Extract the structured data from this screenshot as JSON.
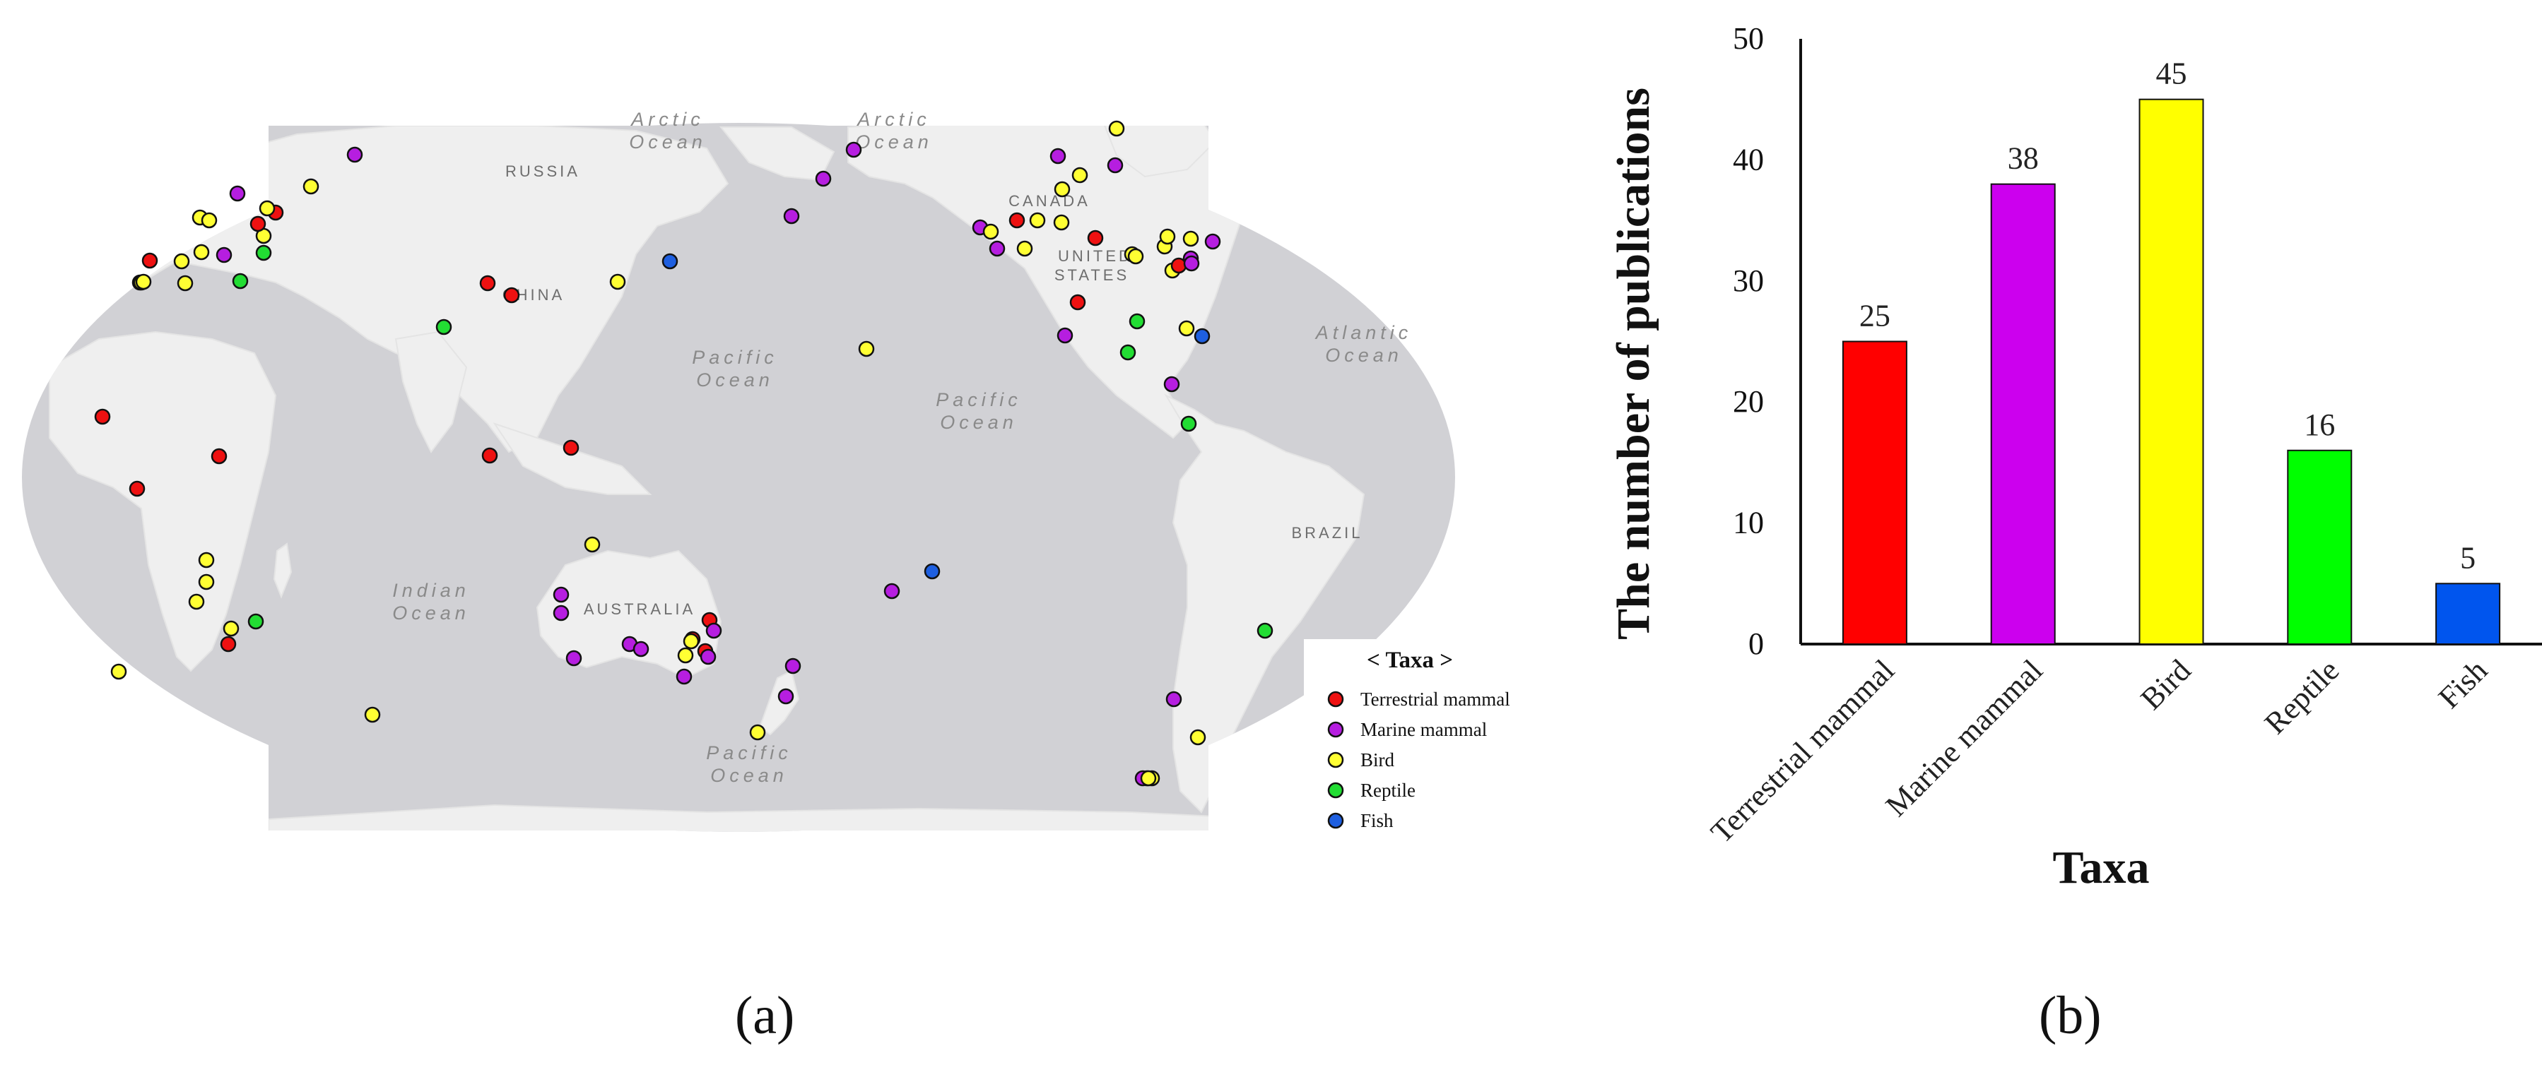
{
  "panel_labels": {
    "a": "(a)",
    "b": "(b)"
  },
  "map": {
    "ocean_labels": [
      {
        "line1": "Arctic",
        "line2": "Ocean"
      },
      {
        "line1": "Arctic",
        "line2": "Ocean"
      },
      {
        "line1": "Pacific",
        "line2": "Ocean"
      },
      {
        "line1": "Pacific",
        "line2": "Ocean"
      },
      {
        "line1": "Atlantic",
        "line2": "Ocean"
      },
      {
        "line1": "Indian",
        "line2": "Ocean"
      },
      {
        "line1": "Pacific",
        "line2": "Ocean"
      }
    ],
    "country_labels": [
      "RUSSIA",
      "CHINA",
      "CANADA",
      "UNITED",
      "STATES",
      "AUSTRALIA",
      "BRAZIL"
    ],
    "legend": {
      "title": "< Taxa >",
      "items": [
        {
          "label": "Terrestrial mammal",
          "color": "#ee1111"
        },
        {
          "label": "Marine mammal",
          "color": "#b61ee0"
        },
        {
          "label": "Bird",
          "color": "#ffff33"
        },
        {
          "label": "Reptile",
          "color": "#22dd33"
        },
        {
          "label": "Fish",
          "color": "#1e5fe0"
        }
      ]
    }
  },
  "chart_data": {
    "type": "bar",
    "categories": [
      "Terrestrial mammal",
      "Marine mammal",
      "Bird",
      "Reptile",
      "Fish"
    ],
    "values": [
      25,
      38,
      45,
      16,
      5
    ],
    "colors": [
      "#ff0000",
      "#cc00ee",
      "#ffff00",
      "#00ff00",
      "#0055ee"
    ],
    "xlabel": "Taxa",
    "ylabel": "The number of publications",
    "ylim": [
      0,
      50
    ],
    "yticks": [
      0,
      10,
      20,
      30,
      40,
      50
    ],
    "data_labels": true
  }
}
